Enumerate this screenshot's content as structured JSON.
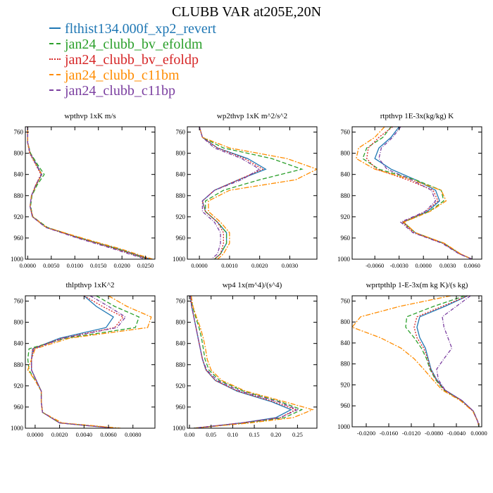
{
  "title": "CLUBB VAR at205E,20N",
  "colors": {
    "flthist134.000f_xp2_revert": "#1f77b4",
    "jan24_clubb_bv_efoldm": "#2ca02c",
    "jan24_clubb_bv_efoldp": "#d62728",
    "jan24_clubb_c11bm": "#ff8c00",
    "jan24_clubb_c11bp": "#7b3fa0"
  },
  "legend": [
    {
      "label": "flthist134.000f_xp2_revert",
      "color": "#1f77b4"
    },
    {
      "label": "jan24_clubb_bv_efoldm",
      "color": "#2ca02c"
    },
    {
      "label": "jan24_clubb_bv_efoldp",
      "color": "#d62728"
    },
    {
      "label": "jan24_clubb_c11bm",
      "color": "#ff8c00"
    },
    {
      "label": "jan24_clubb_c11bp",
      "color": "#7b3fa0"
    }
  ],
  "chart_data": [
    {
      "type": "line",
      "title": "wpthvp  1xK m/s",
      "y": [
        750,
        780,
        800,
        820,
        840,
        860,
        880,
        900,
        920,
        940,
        960,
        980,
        1000
      ],
      "ylim": [
        1000,
        750
      ],
      "yticks": [
        760,
        800,
        840,
        880,
        920,
        960,
        1000
      ],
      "xlim": [
        -0.0005,
        0.027
      ],
      "xticks": [
        0.0,
        0.005,
        0.01,
        0.015,
        0.02,
        0.025
      ],
      "xticklabels": [
        "0.0000",
        "0.0050",
        "0.0100",
        "0.0150",
        "0.0200",
        "0.0250"
      ],
      "series": [
        {
          "name": "flthist134.000f_xp2_revert",
          "values": [
            0,
            0,
            0.0005,
            0.0018,
            0.003,
            0.0018,
            0.0008,
            0.0005,
            0.001,
            0.004,
            0.011,
            0.019,
            0.026
          ]
        },
        {
          "name": "jan24_clubb_bv_efoldm",
          "values": [
            0,
            0,
            0.0006,
            0.002,
            0.0035,
            0.002,
            0.0009,
            0.0006,
            0.0011,
            0.0042,
            0.0112,
            0.0188,
            0.0255
          ]
        },
        {
          "name": "jan24_clubb_bv_efoldp",
          "values": [
            0,
            0,
            0.0004,
            0.0016,
            0.0028,
            0.0017,
            0.0008,
            0.0005,
            0.001,
            0.0039,
            0.0108,
            0.0185,
            0.0258
          ]
        },
        {
          "name": "jan24_clubb_c11bm",
          "values": [
            0,
            0,
            0.0005,
            0.0017,
            0.003,
            0.0018,
            0.0008,
            0.0005,
            0.0011,
            0.004,
            0.0115,
            0.0195,
            0.0265
          ]
        },
        {
          "name": "jan24_clubb_c11bp",
          "values": [
            0,
            0,
            0.0005,
            0.0017,
            0.0029,
            0.0017,
            0.0008,
            0.0005,
            0.001,
            0.0038,
            0.0105,
            0.018,
            0.025
          ]
        }
      ]
    },
    {
      "type": "line",
      "title": "wp2thvp  1xK m^2/s^2",
      "y": [
        750,
        770,
        790,
        810,
        830,
        850,
        870,
        890,
        910,
        930,
        950,
        970,
        990,
        1000
      ],
      "ylim": [
        1000,
        750
      ],
      "yticks": [
        760,
        800,
        840,
        880,
        920,
        960,
        1000
      ],
      "xlim": [
        -0.0004,
        0.0039
      ],
      "xticks": [
        0.0,
        0.001,
        0.002,
        0.003
      ],
      "xticklabels": [
        "0.0000",
        "0.0010",
        "0.0020",
        "0.0030"
      ],
      "series": [
        {
          "name": "flthist134.000f_xp2_revert",
          "values": [
            0,
            0.0001,
            0.0006,
            0.0016,
            0.0022,
            0.0013,
            0.0005,
            0.0001,
            0.0002,
            0.0006,
            0.0009,
            0.0009,
            0.0007,
            0.0005
          ]
        },
        {
          "name": "jan24_clubb_bv_efoldm",
          "values": [
            0,
            0.0001,
            0.0008,
            0.0024,
            0.0034,
            0.002,
            0.0008,
            0.0002,
            0.0002,
            0.0006,
            0.0009,
            0.0009,
            0.0007,
            0.0005
          ]
        },
        {
          "name": "jan24_clubb_bv_efoldp",
          "values": [
            0,
            0.0001,
            0.0006,
            0.0015,
            0.0021,
            0.0013,
            0.0005,
            0.0001,
            0.0002,
            0.0006,
            0.0008,
            0.0008,
            0.0007,
            0.0005
          ]
        },
        {
          "name": "jan24_clubb_c11bm",
          "values": [
            0,
            0.0001,
            0.001,
            0.0029,
            0.0039,
            0.0032,
            0.001,
            0.0003,
            0.0003,
            0.0007,
            0.001,
            0.001,
            0.0008,
            0.0006
          ]
        },
        {
          "name": "jan24_clubb_c11bp",
          "values": [
            0,
            0.0001,
            0.0005,
            0.0014,
            0.002,
            0.0014,
            0.0005,
            0.0001,
            0.0001,
            0.0005,
            0.0007,
            0.0007,
            0.0006,
            0.0004
          ]
        }
      ]
    },
    {
      "type": "line",
      "title": "rtpthvp  1E-3x(kg/kg) K",
      "y": [
        750,
        770,
        790,
        810,
        830,
        850,
        870,
        890,
        910,
        930,
        950,
        970,
        990,
        1000
      ],
      "ylim": [
        1000,
        750
      ],
      "yticks": [
        760,
        800,
        840,
        880,
        920,
        960,
        1000
      ],
      "xlim": [
        -0.0088,
        0.0072
      ],
      "xticks": [
        -0.006,
        -0.003,
        0.0,
        0.003,
        0.006
      ],
      "xticklabels": [
        "-0.0060",
        "-0.0030",
        "0.0000",
        "0.0030",
        "0.0060"
      ],
      "series": [
        {
          "name": "flthist134.000f_xp2_revert",
          "values": [
            -0.003,
            -0.004,
            -0.0055,
            -0.006,
            -0.004,
            -0.001,
            0.0015,
            0.002,
            0.0005,
            -0.0025,
            -0.001,
            0.0025,
            0.0045,
            0.006
          ]
        },
        {
          "name": "jan24_clubb_bv_efoldm",
          "values": [
            -0.004,
            -0.005,
            -0.007,
            -0.0075,
            -0.0055,
            -0.001,
            0.0022,
            0.0025,
            0.0007,
            -0.0025,
            -0.001,
            0.0025,
            0.0045,
            0.006
          ]
        },
        {
          "name": "jan24_clubb_bv_efoldp",
          "values": [
            -0.0038,
            -0.0055,
            -0.0068,
            -0.007,
            -0.0058,
            -0.002,
            0.0012,
            0.0018,
            0.0003,
            -0.0026,
            -0.0012,
            0.0024,
            0.0045,
            0.006
          ]
        },
        {
          "name": "jan24_clubb_c11bm",
          "values": [
            -0.0048,
            -0.006,
            -0.008,
            -0.0083,
            -0.006,
            -0.0015,
            0.0022,
            0.0028,
            0.0008,
            -0.0024,
            -0.001,
            0.0026,
            0.0046,
            0.006
          ]
        },
        {
          "name": "jan24_clubb_c11bp",
          "values": [
            -0.0028,
            -0.0038,
            -0.0052,
            -0.0055,
            -0.0045,
            -0.0015,
            0.001,
            0.0015,
            0.0002,
            -0.0028,
            -0.0013,
            0.0023,
            0.0044,
            0.006
          ]
        }
      ]
    },
    {
      "type": "line",
      "title": "thlpthvp  1xK^2",
      "y": [
        750,
        770,
        790,
        810,
        830,
        850,
        870,
        890,
        910,
        930,
        950,
        970,
        990,
        1000
      ],
      "ylim": [
        1000,
        750
      ],
      "yticks": [
        760,
        800,
        840,
        880,
        920,
        960,
        1000
      ],
      "xlim": [
        -0.0008,
        0.0098
      ],
      "xticks": [
        0.0,
        0.002,
        0.004,
        0.006,
        0.008
      ],
      "xticklabels": [
        "0.0000",
        "0.0020",
        "0.0040",
        "0.0060",
        "0.0080"
      ],
      "series": [
        {
          "name": "flthist134.000f_xp2_revert",
          "values": [
            0.004,
            0.005,
            0.0064,
            0.0058,
            0.002,
            -0.0002,
            -0.0003,
            -0.0003,
            0.0001,
            0.0005,
            0.0005,
            0.0006,
            0.002,
            0.0065
          ]
        },
        {
          "name": "jan24_clubb_bv_efoldm",
          "values": [
            0.005,
            0.0065,
            0.0085,
            0.0082,
            0.0025,
            -0.0005,
            -0.0006,
            -0.0005,
            0.0,
            0.0005,
            0.0005,
            0.0006,
            0.002,
            0.0067
          ]
        },
        {
          "name": "jan24_clubb_bv_efoldp",
          "values": [
            0.004,
            0.0055,
            0.0072,
            0.0065,
            0.0022,
            -0.0002,
            -0.0003,
            -0.0003,
            0.0001,
            0.0005,
            0.0005,
            0.0006,
            0.002,
            0.0066
          ]
        },
        {
          "name": "jan24_clubb_c11bm",
          "values": [
            0.006,
            0.0075,
            0.0095,
            0.0092,
            0.0028,
            0.0,
            -0.0003,
            -0.0006,
            0.0,
            0.0005,
            0.0005,
            0.0006,
            0.0022,
            0.007
          ]
        },
        {
          "name": "jan24_clubb_c11bp",
          "values": [
            0.0045,
            0.006,
            0.0074,
            0.0067,
            0.0023,
            -0.0001,
            -0.0003,
            -0.0003,
            0.0001,
            0.0005,
            0.0005,
            0.0006,
            0.002,
            0.0064
          ]
        }
      ]
    },
    {
      "type": "line",
      "title": "wp4  1x(m^4)/(s^4)",
      "y": [
        750,
        770,
        790,
        810,
        830,
        850,
        870,
        890,
        910,
        930,
        950,
        965,
        980,
        990,
        1000
      ],
      "ylim": [
        1000,
        750
      ],
      "yticks": [
        760,
        800,
        840,
        880,
        920,
        960,
        1000
      ],
      "xlim": [
        -0.005,
        0.295
      ],
      "xticks": [
        0.0,
        0.05,
        0.1,
        0.15,
        0.2,
        0.25
      ],
      "xticklabels": [
        "0.00",
        "0.05",
        "0.10",
        "0.15",
        "0.20",
        "0.25"
      ],
      "series": [
        {
          "name": "flthist134.000f_xp2_revert",
          "values": [
            0.002,
            0.005,
            0.01,
            0.015,
            0.02,
            0.025,
            0.03,
            0.038,
            0.06,
            0.11,
            0.19,
            0.235,
            0.2,
            0.12,
            0.01
          ]
        },
        {
          "name": "jan24_clubb_bv_efoldm",
          "values": [
            0.003,
            0.007,
            0.014,
            0.022,
            0.028,
            0.032,
            0.036,
            0.045,
            0.07,
            0.125,
            0.21,
            0.26,
            0.22,
            0.13,
            0.01
          ]
        },
        {
          "name": "jan24_clubb_bv_efoldp",
          "values": [
            0.002,
            0.005,
            0.01,
            0.015,
            0.02,
            0.025,
            0.03,
            0.038,
            0.06,
            0.112,
            0.195,
            0.245,
            0.21,
            0.12,
            0.01
          ]
        },
        {
          "name": "jan24_clubb_c11bm",
          "values": [
            0.004,
            0.008,
            0.016,
            0.025,
            0.032,
            0.037,
            0.041,
            0.05,
            0.075,
            0.13,
            0.22,
            0.285,
            0.24,
            0.14,
            0.01
          ]
        },
        {
          "name": "jan24_clubb_c11bp",
          "values": [
            0.002,
            0.005,
            0.01,
            0.015,
            0.02,
            0.025,
            0.03,
            0.04,
            0.065,
            0.118,
            0.205,
            0.25,
            0.21,
            0.12,
            0.01
          ]
        }
      ]
    },
    {
      "type": "line",
      "title": "wprtpthlp  1-E-3x(m kg K)/(s kg)",
      "y": [
        750,
        770,
        790,
        810,
        830,
        850,
        870,
        890,
        910,
        930,
        950,
        970,
        990,
        1000
      ],
      "ylim": [
        1000,
        750
      ],
      "yticks": [
        760,
        800,
        840,
        880,
        920,
        960,
        1000
      ],
      "xlim": [
        -0.0225,
        0.0005
      ],
      "xticks": [
        -0.02,
        -0.016,
        -0.012,
        -0.008,
        -0.004,
        0.0
      ],
      "xticklabels": [
        "-0.0200",
        "-0.0160",
        "-0.0120",
        "-0.0080",
        "-0.0040",
        "0.0000"
      ],
      "series": [
        {
          "name": "flthist134.000f_xp2_revert",
          "values": [
            -0.002,
            -0.006,
            -0.0105,
            -0.011,
            -0.0105,
            -0.0095,
            -0.009,
            -0.0085,
            -0.0075,
            -0.006,
            -0.003,
            -0.001,
            -0.0002,
            0.0
          ]
        },
        {
          "name": "jan24_clubb_bv_efoldm",
          "values": [
            -0.0025,
            -0.008,
            -0.0128,
            -0.013,
            -0.0115,
            -0.0102,
            -0.0093,
            -0.0087,
            -0.0077,
            -0.0062,
            -0.0031,
            -0.001,
            -0.0002,
            0.0
          ]
        },
        {
          "name": "jan24_clubb_bv_efoldp",
          "values": [
            -0.002,
            -0.0065,
            -0.011,
            -0.0115,
            -0.011,
            -0.0098,
            -0.0091,
            -0.0086,
            -0.0076,
            -0.0061,
            -0.003,
            -0.001,
            -0.0002,
            0.0
          ]
        },
        {
          "name": "jan24_clubb_c11bm",
          "values": [
            -0.005,
            -0.014,
            -0.021,
            -0.0225,
            -0.0175,
            -0.0138,
            -0.0115,
            -0.0098,
            -0.0082,
            -0.0065,
            -0.0033,
            -0.0011,
            -0.0002,
            0.0
          ]
        },
        {
          "name": "jan24_clubb_c11bp",
          "values": [
            -0.0015,
            -0.004,
            -0.0065,
            -0.0062,
            -0.0055,
            -0.0048,
            -0.0062,
            -0.0075,
            -0.0072,
            -0.006,
            -0.003,
            -0.001,
            -0.0002,
            0.0
          ]
        }
      ]
    }
  ]
}
